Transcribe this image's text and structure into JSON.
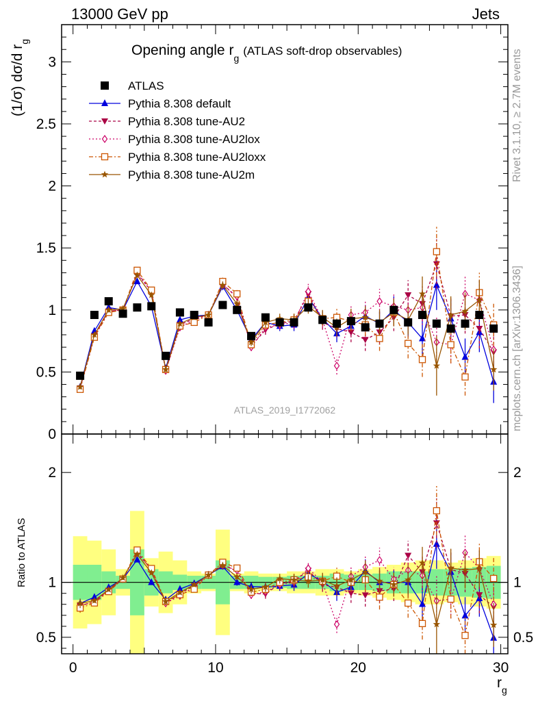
{
  "header": {
    "left": "13000 GeV pp",
    "right": "Jets"
  },
  "side_labels": {
    "rivet": "Rivet 3.1.10, ≥ 2.7M events",
    "mcplots": "mcplots.cern.ch [arXiv:1306.3436]"
  },
  "chart_data": {
    "type": "scatter",
    "title": "Opening angle r",
    "title_subscript": "g",
    "title_suffix": "(ATLAS soft-drop observables)",
    "watermark": "ATLAS_2019_I1772062",
    "xlabel": "r",
    "xlabel_subscript": "g",
    "ylabel": "(1/σ) dσ/d r",
    "ylabel_subscript": "g",
    "ratio_ylabel": "Ratio to ATLAS",
    "xlim": [
      -0.8,
      30.5
    ],
    "ylim_main": [
      0,
      3.3
    ],
    "ylim_ratio": [
      0.35,
      2.35
    ],
    "x_ticks": [
      0,
      10,
      20,
      30
    ],
    "x_tick_labels": [
      "0",
      "10",
      "20",
      "30"
    ],
    "y_ticks_main": [
      0,
      0.5,
      1,
      1.5,
      2,
      2.5,
      3
    ],
    "y_tick_labels_main": [
      "0",
      "0.5",
      "1",
      "1.5",
      "2",
      "2.5",
      "3"
    ],
    "y_ticks_ratio": [
      0.5,
      1,
      2
    ],
    "y_tick_labels_ratio": [
      "0.5",
      "1",
      "2"
    ],
    "legend_position": "top-left",
    "x": [
      0.5,
      1.5,
      2.5,
      3.5,
      4.5,
      5.5,
      6.5,
      7.5,
      8.5,
      9.5,
      10.5,
      11.5,
      12.5,
      13.5,
      14.5,
      15.5,
      16.5,
      17.5,
      18.5,
      19.5,
      20.5,
      21.5,
      22.5,
      23.5,
      24.5,
      25.5,
      26.5,
      27.5,
      28.5,
      29.5
    ],
    "data": {
      "name": "ATLAS",
      "color": "#000000",
      "values": [
        0.47,
        0.96,
        1.07,
        0.97,
        1.02,
        1.03,
        0.63,
        0.98,
        0.96,
        0.9,
        1.04,
        1.0,
        0.79,
        0.94,
        0.9,
        0.9,
        1.02,
        0.92,
        0.89,
        0.91,
        0.86,
        0.89,
        1.0,
        0.9,
        0.96,
        0.89,
        0.85,
        0.89,
        0.96,
        0.85
      ],
      "band_inner": [
        0.16,
        0.16,
        0.1,
        0.06,
        0.3,
        0.12,
        0.1,
        0.07,
        0.06,
        0.06,
        0.2,
        0.06,
        0.06,
        0.05,
        0.05,
        0.06,
        0.06,
        0.06,
        0.08,
        0.07,
        0.07,
        0.08,
        0.1,
        0.1,
        0.1,
        0.12,
        0.12,
        0.13,
        0.14,
        0.15
      ],
      "band_outer": [
        0.42,
        0.38,
        0.3,
        0.12,
        0.65,
        0.22,
        0.28,
        0.2,
        0.1,
        0.08,
        0.48,
        0.08,
        0.1,
        0.08,
        0.08,
        0.1,
        0.1,
        0.12,
        0.12,
        0.1,
        0.12,
        0.14,
        0.16,
        0.18,
        0.2,
        0.2,
        0.18,
        0.2,
        0.22,
        0.24
      ]
    },
    "series": [
      {
        "name": "Pythia 8.308 default",
        "color": "#0000dd",
        "dash": "",
        "marker": "triangle-up",
        "values": [
          0.38,
          0.83,
          1.02,
          1.0,
          1.23,
          1.03,
          0.53,
          0.92,
          0.95,
          0.96,
          1.19,
          1.0,
          0.76,
          0.9,
          0.87,
          0.88,
          1.1,
          0.93,
          0.81,
          0.87,
          0.95,
          0.89,
          1.0,
          0.9,
          0.77,
          1.2,
          0.93,
          0.62,
          0.82,
          0.42
        ],
        "errors": [
          0.02,
          0.02,
          0.02,
          0.02,
          0.02,
          0.02,
          0.02,
          0.02,
          0.02,
          0.03,
          0.03,
          0.03,
          0.03,
          0.04,
          0.04,
          0.05,
          0.06,
          0.06,
          0.07,
          0.08,
          0.09,
          0.1,
          0.11,
          0.12,
          0.14,
          0.2,
          0.15,
          0.15,
          0.16,
          0.17
        ]
      },
      {
        "name": "Pythia 8.308 tune-AU2",
        "color": "#aa0044",
        "dash": "4,3",
        "marker": "triangle-down",
        "values": [
          0.37,
          0.79,
          0.99,
          1.0,
          1.3,
          1.15,
          0.51,
          0.88,
          0.93,
          0.96,
          1.21,
          1.1,
          0.71,
          0.84,
          0.89,
          0.91,
          1.13,
          0.9,
          0.85,
          0.82,
          0.76,
          0.82,
          0.94,
          1.12,
          1.05,
          1.37,
          0.95,
          0.96,
          0.85,
          0.66
        ],
        "errors": [
          0.02,
          0.02,
          0.02,
          0.02,
          0.02,
          0.02,
          0.02,
          0.02,
          0.02,
          0.03,
          0.03,
          0.03,
          0.03,
          0.04,
          0.04,
          0.05,
          0.06,
          0.06,
          0.07,
          0.08,
          0.09,
          0.1,
          0.11,
          0.12,
          0.14,
          0.2,
          0.15,
          0.15,
          0.16,
          0.17
        ]
      },
      {
        "name": "Pythia 8.308 tune-AU2lox",
        "color": "#cc0066",
        "dash": "2,3",
        "marker": "diamond-open",
        "values": [
          0.37,
          0.79,
          0.99,
          1.0,
          1.29,
          1.15,
          0.51,
          0.86,
          0.92,
          0.96,
          1.2,
          1.11,
          0.7,
          0.86,
          0.88,
          0.9,
          1.15,
          0.92,
          0.55,
          0.96,
          0.98,
          1.07,
          1.03,
          1.0,
          1.02,
          0.74,
          0.72,
          1.13,
          1.08,
          0.68
        ],
        "errors": [
          0.02,
          0.02,
          0.02,
          0.02,
          0.02,
          0.02,
          0.02,
          0.02,
          0.02,
          0.03,
          0.03,
          0.03,
          0.03,
          0.04,
          0.04,
          0.05,
          0.06,
          0.06,
          0.07,
          0.08,
          0.09,
          0.1,
          0.11,
          0.12,
          0.14,
          0.2,
          0.15,
          0.15,
          0.16,
          0.17
        ]
      },
      {
        "name": "Pythia 8.308 tune-AU2loxx",
        "color": "#cc5500",
        "dash": "6,3,2,3",
        "marker": "square-open",
        "values": [
          0.36,
          0.78,
          0.98,
          1.0,
          1.32,
          1.16,
          0.52,
          0.87,
          0.9,
          0.96,
          1.23,
          1.13,
          0.72,
          0.88,
          0.9,
          0.92,
          1.07,
          0.93,
          0.94,
          0.91,
          0.88,
          0.77,
          0.98,
          0.73,
          0.6,
          1.47,
          0.72,
          0.46,
          1.14,
          0.88
        ],
        "errors": [
          0.02,
          0.02,
          0.02,
          0.02,
          0.02,
          0.02,
          0.02,
          0.02,
          0.02,
          0.03,
          0.03,
          0.03,
          0.03,
          0.04,
          0.04,
          0.05,
          0.06,
          0.06,
          0.07,
          0.08,
          0.09,
          0.1,
          0.11,
          0.12,
          0.14,
          0.2,
          0.15,
          0.15,
          0.16,
          0.17
        ]
      },
      {
        "name": "Pythia 8.308 tune-AU2m",
        "color": "#995500",
        "dash": "",
        "marker": "star",
        "values": [
          0.38,
          0.8,
          1.0,
          1.01,
          1.28,
          1.12,
          0.52,
          0.89,
          0.94,
          0.96,
          1.2,
          1.05,
          0.74,
          0.9,
          0.93,
          0.92,
          1.03,
          0.94,
          0.86,
          0.93,
          0.94,
          0.9,
          0.98,
          0.92,
          1.13,
          0.55,
          0.96,
          0.99,
          1.08,
          0.52
        ],
        "errors": [
          0.02,
          0.02,
          0.02,
          0.02,
          0.02,
          0.02,
          0.02,
          0.02,
          0.02,
          0.03,
          0.03,
          0.03,
          0.03,
          0.04,
          0.04,
          0.05,
          0.06,
          0.06,
          0.07,
          0.08,
          0.09,
          0.1,
          0.11,
          0.12,
          0.14,
          0.24,
          0.15,
          0.15,
          0.16,
          0.17
        ]
      }
    ]
  }
}
